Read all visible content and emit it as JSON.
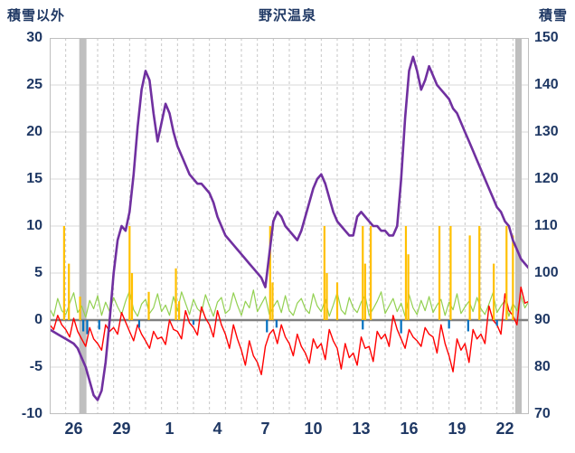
{
  "header": {
    "left_axis_title": "積雪以外",
    "chart_title": "野沢温泉",
    "right_axis_title": "積雪"
  },
  "chart_data": {
    "type": "line",
    "title": "野沢温泉",
    "text_color": "#1F3864",
    "grid_color": "#DADADA",
    "vgrid_color": "#C6C6C6",
    "zero_line_color": "#808080",
    "border_color": "#BFBFBF",
    "band_color": "#BFBFBF",
    "left_axis": {
      "label": "積雪以外",
      "min": -10,
      "max": 30,
      "ticks": [
        30,
        25,
        20,
        15,
        10,
        5,
        0,
        -5,
        -10
      ]
    },
    "right_axis": {
      "label": "積雪",
      "min": 70,
      "max": 150,
      "ticks": [
        150,
        140,
        130,
        120,
        110,
        100,
        90,
        80,
        70
      ]
    },
    "x_axis": {
      "domain_days": [
        0,
        30
      ],
      "tick_labels": [
        "26",
        "29",
        "1",
        "4",
        "7",
        "10",
        "13",
        "16",
        "19",
        "22"
      ],
      "tick_offsets": [
        1.5,
        4.5,
        7.5,
        10.5,
        13.5,
        16.5,
        19.5,
        22.5,
        25.5,
        28.5
      ]
    },
    "bands": [
      {
        "x0": 1.85,
        "x1": 2.3
      },
      {
        "x0": 29.15,
        "x1": 29.55
      }
    ],
    "bars": [
      {
        "name": "precipitation",
        "color": "#FFC000",
        "points": [
          {
            "x": 0.9,
            "v": 10
          },
          {
            "x": 1.2,
            "v": 6
          },
          {
            "x": 1.9,
            "v": 2.5
          },
          {
            "x": 5.0,
            "v": 10
          },
          {
            "x": 5.15,
            "v": 5
          },
          {
            "x": 6.2,
            "v": 3
          },
          {
            "x": 7.9,
            "v": 5.5
          },
          {
            "x": 8.1,
            "v": 2
          },
          {
            "x": 13.8,
            "v": 10
          },
          {
            "x": 13.95,
            "v": 4
          },
          {
            "x": 17.2,
            "v": 10
          },
          {
            "x": 17.35,
            "v": 5
          },
          {
            "x": 18.0,
            "v": 4
          },
          {
            "x": 19.6,
            "v": 10
          },
          {
            "x": 19.75,
            "v": 6
          },
          {
            "x": 20.1,
            "v": 10
          },
          {
            "x": 22.3,
            "v": 10
          },
          {
            "x": 22.45,
            "v": 7
          },
          {
            "x": 24.4,
            "v": 10
          },
          {
            "x": 25.1,
            "v": 10
          },
          {
            "x": 26.3,
            "v": 9
          },
          {
            "x": 26.9,
            "v": 10
          },
          {
            "x": 27.8,
            "v": 6
          },
          {
            "x": 28.6,
            "v": 10
          },
          {
            "x": 29.0,
            "v": 9
          }
        ]
      },
      {
        "name": "blue-bars",
        "color": "#0070C0",
        "points": [
          {
            "x": 2.1,
            "v": -1.2
          },
          {
            "x": 2.35,
            "v": -1.5
          },
          {
            "x": 3.1,
            "v": -1.0
          },
          {
            "x": 5.6,
            "v": -0.8
          },
          {
            "x": 9.0,
            "v": -0.5
          },
          {
            "x": 13.6,
            "v": -1.3
          },
          {
            "x": 14.2,
            "v": -0.8
          },
          {
            "x": 19.6,
            "v": -1.0
          },
          {
            "x": 22.0,
            "v": -1.4
          },
          {
            "x": 25.0,
            "v": -0.9
          },
          {
            "x": 26.2,
            "v": -1.2
          },
          {
            "x": 28.0,
            "v": -0.6
          }
        ]
      }
    ],
    "series": [
      {
        "name": "wind",
        "color": "#92D050",
        "axis": "left",
        "width": 1.2,
        "values": [
          1.2,
          0.4,
          2.3,
          1.0,
          0.6,
          1.8,
          2.9,
          0.8,
          1.5,
          0.3,
          2.1,
          1.2,
          2.6,
          0.5,
          1.9,
          0.9,
          2.4,
          1.4,
          0.6,
          2.0,
          3.1,
          1.1,
          0.4,
          1.7,
          2.2,
          0.7,
          1.3,
          2.8,
          0.9,
          1.6,
          0.5,
          2.5,
          1.0,
          3.0,
          1.8,
          0.6,
          2.2,
          1.2,
          0.8,
          2.7,
          1.5,
          0.4,
          1.9,
          2.4,
          0.7,
          1.1,
          2.9,
          1.6,
          0.5,
          2.0,
          1.3,
          3.2,
          0.9,
          1.7,
          2.5,
          0.6,
          1.4,
          2.1,
          0.8,
          2.6,
          1.0,
          0.5,
          1.8,
          2.3,
          1.2,
          0.7,
          2.8,
          1.5,
          0.9,
          2.2,
          0.4,
          1.6,
          2.9,
          1.1,
          0.6,
          2.4,
          1.3,
          0.8,
          1.9,
          2.6,
          0.5,
          1.2,
          2.0,
          3.0,
          0.7,
          1.5,
          2.3,
          0.9,
          1.8,
          0.4,
          2.7,
          1.3,
          0.6,
          2.1,
          1.0,
          2.5,
          0.8,
          1.6,
          2.2,
          0.5,
          1.9,
          1.1,
          2.8,
          0.7,
          1.4,
          2.0,
          0.9,
          2.4,
          1.2,
          0.6,
          1.7,
          2.9,
          0.8,
          1.5,
          2.1,
          0.4,
          1.8,
          1.0,
          2.6,
          1.3,
          2.0
        ]
      },
      {
        "name": "temperature",
        "color": "#FF0000",
        "axis": "left",
        "width": 1.4,
        "values": [
          -0.5,
          -1.0,
          0.5,
          -0.5,
          -1.0,
          -1.8,
          0.2,
          -1.2,
          -2.0,
          -2.8,
          -0.8,
          -2.0,
          -2.5,
          -3.2,
          -0.5,
          -1.2,
          -0.8,
          -1.5,
          0.8,
          -0.2,
          -1.2,
          -2.2,
          -0.5,
          -1.5,
          -2.2,
          -3.0,
          -1.2,
          -2.0,
          -1.8,
          -2.6,
          0.0,
          -1.0,
          -1.2,
          -2.0,
          1.0,
          -0.3,
          -0.8,
          -1.6,
          1.4,
          0.2,
          -0.5,
          -1.8,
          1.0,
          -0.5,
          -1.5,
          -3.0,
          -0.5,
          -2.0,
          -3.2,
          -4.8,
          -2.2,
          -3.8,
          -4.5,
          -5.8,
          -2.8,
          -1.5,
          -1.0,
          -2.5,
          -0.5,
          -1.8,
          -2.5,
          -3.8,
          -1.5,
          -2.8,
          -3.5,
          -4.6,
          -2.0,
          -3.0,
          -2.5,
          -4.2,
          -1.0,
          -2.2,
          -3.0,
          -5.2,
          -2.5,
          -4.0,
          -3.5,
          -4.8,
          -1.8,
          -3.0,
          -2.8,
          -4.4,
          -1.2,
          -2.0,
          -1.5,
          -2.8,
          0.5,
          -1.0,
          -2.0,
          -3.0,
          -1.0,
          -1.8,
          -2.2,
          -2.8,
          -0.8,
          -1.5,
          -1.8,
          -3.5,
          -0.5,
          -2.5,
          -3.8,
          -5.5,
          -2.0,
          -3.2,
          -2.5,
          -4.5,
          -1.0,
          -2.0,
          -1.5,
          -2.5,
          1.5,
          0.0,
          -0.5,
          -1.5,
          2.8,
          1.0,
          0.5,
          -0.5,
          3.5,
          1.8,
          2.0
        ]
      },
      {
        "name": "snow-depth",
        "color": "#7030A0",
        "axis": "right",
        "width": 2.6,
        "values": [
          88,
          87.5,
          87,
          86.5,
          86,
          85.5,
          85,
          84,
          82,
          80,
          77,
          74,
          73,
          75,
          81,
          90,
          100,
          107,
          110,
          109,
          113,
          121,
          131,
          139,
          143,
          141,
          134,
          128,
          132,
          136,
          134,
          130,
          127,
          125,
          123,
          121,
          120,
          119,
          119,
          118,
          117,
          115,
          112,
          110,
          108,
          107,
          106,
          105,
          104,
          103,
          102,
          101,
          100,
          99,
          97,
          104,
          111,
          113,
          112,
          110,
          109,
          108,
          107,
          109,
          112,
          115,
          118,
          120,
          121,
          119,
          116,
          113,
          111,
          110,
          109,
          108,
          108,
          112,
          113,
          112,
          111,
          110,
          110,
          109,
          109,
          108,
          108,
          110,
          120,
          133,
          143,
          146,
          143,
          139,
          141,
          144,
          142,
          140,
          139,
          138,
          137,
          135,
          134,
          132,
          130,
          128,
          126,
          124,
          122,
          120,
          118,
          116,
          114,
          113,
          111,
          110,
          107,
          105,
          103,
          102,
          101
        ]
      }
    ]
  }
}
